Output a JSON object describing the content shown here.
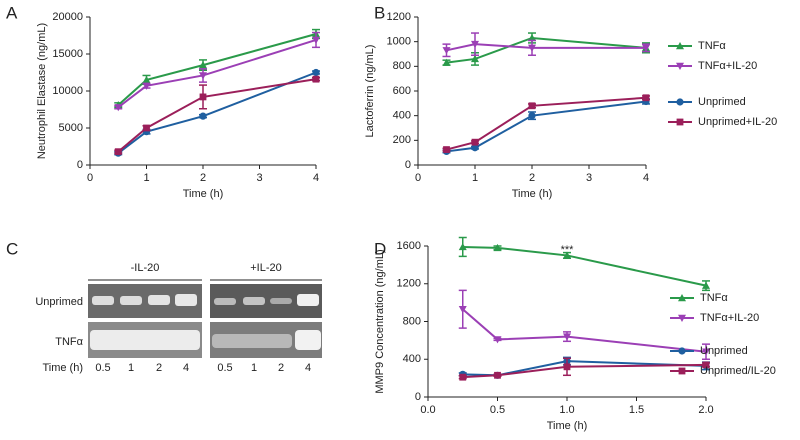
{
  "chart_data": [
    {
      "type": "line",
      "panel_label": "A",
      "x_label": "Time (h)",
      "y_label": "Neutrophil Elastase (ng/mL)",
      "x": [
        0.5,
        1,
        2,
        4
      ],
      "xlim": [
        0,
        4
      ],
      "xticks": [
        0,
        1,
        2,
        3,
        4
      ],
      "ylim": [
        0,
        20000
      ],
      "yticks": [
        0,
        5000,
        10000,
        15000,
        20000
      ],
      "series": [
        {
          "color": "#2a9a4a",
          "marker": "triangle-up",
          "values": [
            8100,
            11500,
            13500,
            17700
          ],
          "errors": [
            300,
            600,
            700,
            600
          ]
        },
        {
          "color": "#9b3fb5",
          "marker": "triangle-down",
          "values": [
            7800,
            10700,
            12100,
            16900
          ],
          "errors": [
            200,
            300,
            900,
            1000
          ]
        },
        {
          "color": "#1f5fa0",
          "marker": "circle",
          "values": [
            1600,
            4500,
            6600,
            12500
          ],
          "errors": [
            200,
            300,
            200,
            200
          ]
        },
        {
          "color": "#9b1f5a",
          "marker": "square",
          "values": [
            1800,
            5000,
            9200,
            11600
          ],
          "errors": [
            200,
            300,
            1600,
            200
          ]
        }
      ]
    },
    {
      "type": "line",
      "panel_label": "B",
      "x_label": "Time (h)",
      "y_label": "Lactoferrin (ng/mL)",
      "x": [
        0.5,
        1,
        2,
        4
      ],
      "xlim": [
        0,
        4
      ],
      "xticks": [
        0,
        1,
        2,
        3,
        4
      ],
      "ylim": [
        0,
        1200
      ],
      "yticks": [
        0,
        200,
        400,
        600,
        800,
        1000,
        1200
      ],
      "legend": "right",
      "series": [
        {
          "name": "TNFα",
          "color": "#2a9a4a",
          "marker": "triangle-up",
          "values": [
            830,
            860,
            1030,
            950
          ],
          "errors": [
            20,
            50,
            40,
            40
          ]
        },
        {
          "name": "TNFα+IL-20",
          "color": "#9b3fb5",
          "marker": "triangle-down",
          "values": [
            930,
            980,
            950,
            950
          ],
          "errors": [
            50,
            90,
            60,
            30
          ]
        },
        {
          "name": "Unprimed",
          "color": "#1f5fa0",
          "marker": "circle",
          "values": [
            110,
            140,
            400,
            515
          ],
          "errors": [
            10,
            10,
            30,
            20
          ]
        },
        {
          "name": "Unprimed+IL-20",
          "color": "#9b1f5a",
          "marker": "square",
          "values": [
            125,
            185,
            480,
            545
          ],
          "errors": [
            10,
            10,
            15,
            15
          ]
        }
      ]
    },
    {
      "type": "line",
      "panel_label": "D",
      "x_label": "Time (h)",
      "y_label": "MMP9 Concentration (ng/mL)",
      "x": [
        0.25,
        0.5,
        1,
        2
      ],
      "xlim": [
        0,
        2
      ],
      "xticks": [
        {
          "value": 0,
          "label": "0.0"
        },
        0.5,
        {
          "value": 1,
          "label": "1.0"
        },
        1.5,
        {
          "value": 2,
          "label": "2.0"
        }
      ],
      "ylim": [
        0,
        1600
      ],
      "yticks": [
        0,
        400,
        800,
        1200,
        1600
      ],
      "legend": "right",
      "annotations": [
        {
          "text": "***",
          "x": 1
        }
      ],
      "series": [
        {
          "name": "TNFα",
          "color": "#2a9a4a",
          "marker": "triangle-up",
          "values": [
            1590,
            1580,
            1500,
            1180
          ],
          "errors": [
            100,
            20,
            30,
            50
          ]
        },
        {
          "name": "TNFα+IL-20",
          "color": "#9b3fb5",
          "marker": "triangle-down",
          "values": [
            930,
            610,
            640,
            480
          ],
          "errors": [
            200,
            10,
            50,
            80
          ]
        },
        {
          "name": "Unprimed",
          "color": "#1f5fa0",
          "marker": "circle",
          "values": [
            240,
            230,
            380,
            330
          ],
          "errors": [
            15,
            10,
            40,
            40
          ]
        },
        {
          "name": "Unprimed/IL-20",
          "color": "#9b1f5a",
          "marker": "square",
          "values": [
            210,
            230,
            320,
            340
          ],
          "errors": [
            15,
            10,
            90,
            20
          ]
        }
      ]
    }
  ],
  "gel": {
    "panel_label": "C",
    "groups": [
      "-IL-20",
      "+IL-20"
    ],
    "rows": [
      "Unprimed",
      "TNFα"
    ],
    "time_label": "Time (h)",
    "lanes": [
      "0.5",
      "1",
      "2",
      "4",
      "0.5",
      "1",
      "2",
      "4"
    ]
  }
}
